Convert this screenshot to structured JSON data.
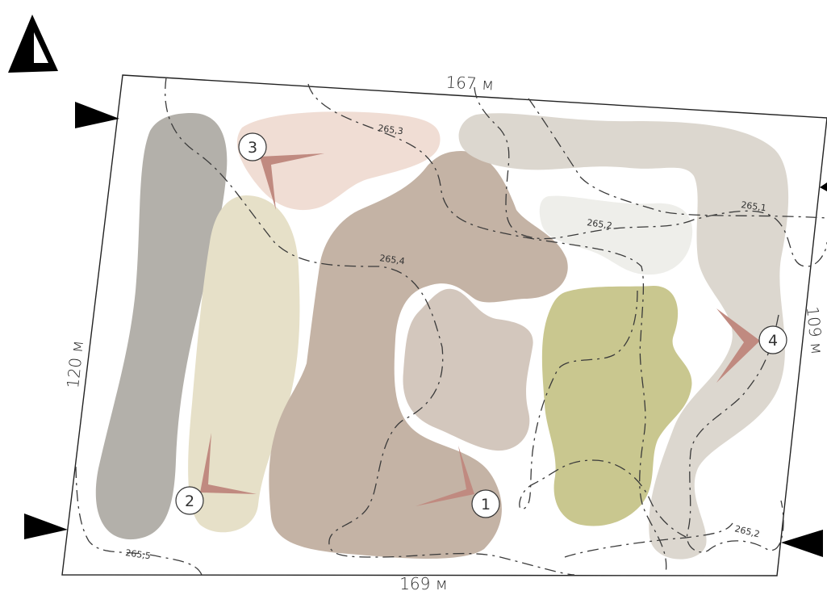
{
  "dimensions": {
    "top": "167 м",
    "bottom": "169 м",
    "left": "120 м",
    "right": "109 м"
  },
  "elevations": [
    "265,3",
    "265,4",
    "265,2",
    "265,1",
    "265,2",
    "265,5"
  ],
  "viewpoints": [
    "1",
    "2",
    "3",
    "4"
  ],
  "colors": {
    "dark_gray_zone": "#b3b0aa",
    "cream_zone": "#e6e0c8",
    "pink_zone": "#f0ddd4",
    "brown_zone": "#c4b3a5",
    "inner_zone": "#d3c7bd",
    "light_gray_zone": "#dcd7cf",
    "pale_zone": "#eeeeea",
    "olive_zone": "#c9c78f",
    "arrow": "#c08a80",
    "north_arrow": "#000000"
  },
  "icons": [
    "north-arrow-icon",
    "boundary-marker-icon"
  ]
}
